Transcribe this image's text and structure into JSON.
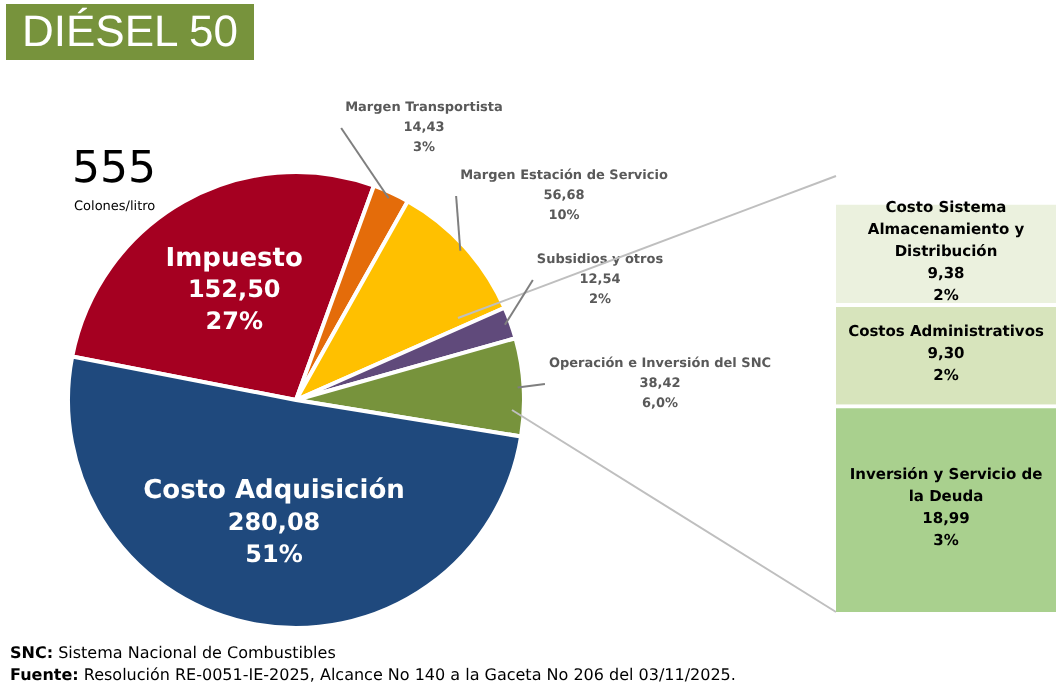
{
  "chart_data": [
    {
      "type": "pie",
      "title": "DIÉSEL 50",
      "categories": [
        "Impuesto",
        "Margen Transportista",
        "Margen Estación de Servicio",
        "Subsidios y otros",
        "Operación e Inversión del SNC",
        "Costo Adquisición"
      ],
      "values": [
        152.5,
        14.43,
        56.68,
        12.54,
        38.42,
        280.08
      ],
      "value_labels": [
        "152,50\n27%",
        "14,43\n3%",
        "56,68\n10%",
        "12,54\n2%",
        "38,42\n6,0%",
        "280,08\n51%"
      ],
      "colors": [
        "#a50021",
        "#e46c0a",
        "#ffc000",
        "#604a7b",
        "#77933c",
        "#1f497d"
      ],
      "legend": false,
      "annotations": [
        "555",
        "Colones/litro",
        "SNC: Sistema Nacional de Combustibles",
        "Fuente: Resolución RE-0051-IE-2025, Alcance No 140 a la Gaceta No 206 del 03/11/2025."
      ]
    },
    {
      "type": "bar",
      "stacked": true,
      "categories": [
        null
      ],
      "legend": false,
      "tick_labels": false,
      "series": [
        {
          "name": "Inversión y Servicio de la Deuda",
          "color": "#a9d08e",
          "values": [
            18.99
          ],
          "value_labels": [
            "18,99\n3%"
          ]
        },
        {
          "name": "Costos Administrativos",
          "color": "#d7e4bc",
          "values": [
            9.3
          ],
          "value_labels": [
            "9,30\n2%"
          ]
        },
        {
          "name": "Costo Sistema Almacenamiento y Distribución",
          "color": "#ebf1de",
          "values": [
            9.38
          ],
          "value_labels": [
            "9,38\n2%"
          ]
        }
      ]
    }
  ]
}
